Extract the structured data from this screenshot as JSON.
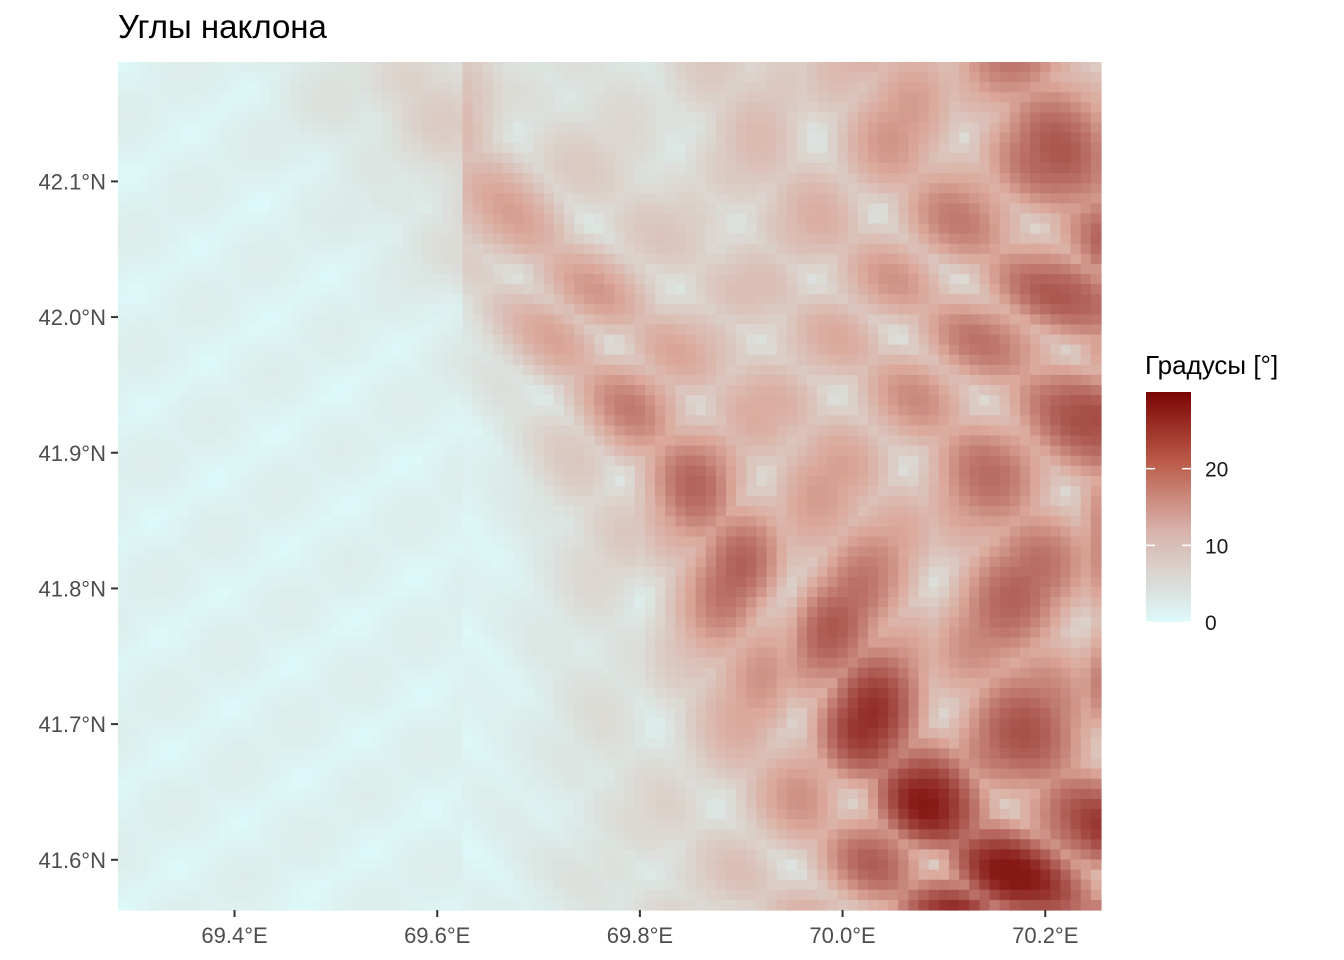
{
  "chart_data": {
    "type": "heatmap",
    "title": "Углы наклона",
    "xlabel": "",
    "ylabel": "",
    "x_ticks": [
      {
        "value": 69.4,
        "label": "69.4°E"
      },
      {
        "value": 69.6,
        "label": "69.6°E"
      },
      {
        "value": 69.8,
        "label": "69.8°E"
      },
      {
        "value": 70.0,
        "label": "70.0°E"
      },
      {
        "value": 70.2,
        "label": "70.2°E"
      }
    ],
    "y_ticks": [
      {
        "value": 42.1,
        "label": "42.1°N"
      },
      {
        "value": 42.0,
        "label": "42.0°N"
      },
      {
        "value": 41.9,
        "label": "41.9°N"
      },
      {
        "value": 41.8,
        "label": "41.8°N"
      },
      {
        "value": 41.7,
        "label": "41.7°N"
      },
      {
        "value": 41.6,
        "label": "41.6°N"
      }
    ],
    "xlim": [
      69.285,
      70.255
    ],
    "ylim": [
      41.563,
      42.188
    ],
    "legend": {
      "title": "Градусы [°]",
      "position": "right",
      "range": [
        0,
        30
      ],
      "breaks": [
        {
          "value": 20,
          "label": "20"
        },
        {
          "value": 10,
          "label": "10"
        },
        {
          "value": 0,
          "label": "0"
        }
      ],
      "low_color": "#dcfafa",
      "mid_color": "#dba79a",
      "high_color": "#7a0403"
    },
    "grid": false,
    "approx_pattern": {
      "low_slope_region": "west and center (0–3°)",
      "moderate_ridges": "diagonal bands from 69.65°E to 69.95°E (8–14°)",
      "steep_region": "east of 70.0°E (15–28°)",
      "max_value": 28
    }
  }
}
